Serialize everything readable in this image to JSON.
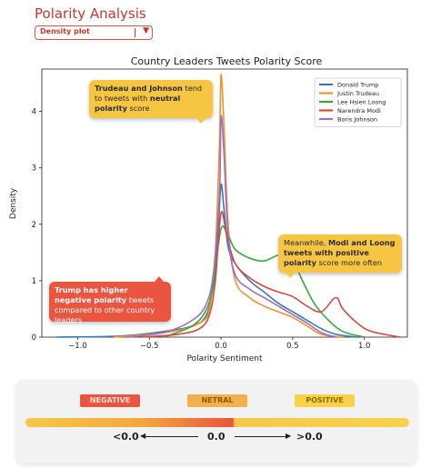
{
  "app": {
    "title": "Polarity Analysis",
    "plot_select": {
      "value": "Density plot",
      "caret": "▼"
    }
  },
  "chart_data": {
    "type": "line",
    "title": "Country Leaders Tweets Polarity Score",
    "xlabel": "Polarity Sentiment",
    "ylabel": "Density",
    "xlim": [
      -1.25,
      1.3
    ],
    "ylim": [
      0,
      4.75
    ],
    "xticks": [
      -1.0,
      -0.5,
      0.0,
      0.5,
      1.0
    ],
    "xtick_labels": [
      "−1.0",
      "−0.5",
      "0.0",
      "0.5",
      "1.0"
    ],
    "yticks": [
      0,
      1,
      2,
      3,
      4
    ],
    "ytick_labels": [
      "0",
      "1",
      "2",
      "3",
      "4"
    ],
    "legend_position": "top-right",
    "series": [
      {
        "name": "Donald Trump",
        "color": "#3b78ae",
        "points": [
          [
            -1.15,
            0
          ],
          [
            -0.7,
            0.02
          ],
          [
            -0.4,
            0.1
          ],
          [
            -0.2,
            0.2
          ],
          [
            -0.1,
            0.4
          ],
          [
            -0.05,
            1.0
          ],
          [
            -0.02,
            1.9
          ],
          [
            0,
            2.7
          ],
          [
            0.02,
            2.3
          ],
          [
            0.05,
            1.6
          ],
          [
            0.1,
            1.3
          ],
          [
            0.2,
            1.0
          ],
          [
            0.3,
            0.8
          ],
          [
            0.4,
            0.6
          ],
          [
            0.5,
            0.45
          ],
          [
            0.6,
            0.3
          ],
          [
            0.7,
            0.15
          ],
          [
            0.8,
            0.05
          ],
          [
            0.95,
            0
          ]
        ]
      },
      {
        "name": "Justin Trudeau",
        "color": "#f0922a",
        "points": [
          [
            -0.75,
            0
          ],
          [
            -0.5,
            0.05
          ],
          [
            -0.3,
            0.12
          ],
          [
            -0.15,
            0.25
          ],
          [
            -0.08,
            0.5
          ],
          [
            -0.04,
            1.5
          ],
          [
            -0.01,
            3.5
          ],
          [
            0,
            4.65
          ],
          [
            0.02,
            3.8
          ],
          [
            0.05,
            2.0
          ],
          [
            0.1,
            1.0
          ],
          [
            0.2,
            0.7
          ],
          [
            0.3,
            0.55
          ],
          [
            0.4,
            0.45
          ],
          [
            0.5,
            0.35
          ],
          [
            0.6,
            0.2
          ],
          [
            0.7,
            0.05
          ],
          [
            0.85,
            0
          ]
        ]
      },
      {
        "name": "Lee Hsien Loong",
        "color": "#3aa83a",
        "points": [
          [
            -0.4,
            0
          ],
          [
            -0.2,
            0.2
          ],
          [
            -0.1,
            0.5
          ],
          [
            -0.05,
            1.0
          ],
          [
            0,
            1.92
          ],
          [
            0.05,
            1.8
          ],
          [
            0.1,
            1.55
          ],
          [
            0.2,
            1.4
          ],
          [
            0.3,
            1.35
          ],
          [
            0.4,
            1.45
          ],
          [
            0.5,
            1.4
          ],
          [
            0.55,
            1.1
          ],
          [
            0.65,
            0.6
          ],
          [
            0.75,
            0.3
          ],
          [
            0.85,
            0.1
          ],
          [
            1.0,
            0
          ]
        ]
      },
      {
        "name": "Narendra Modi",
        "color": "#d24a3f",
        "points": [
          [
            -0.55,
            0
          ],
          [
            -0.3,
            0.05
          ],
          [
            -0.15,
            0.15
          ],
          [
            -0.08,
            0.4
          ],
          [
            -0.04,
            1.0
          ],
          [
            0,
            2.2
          ],
          [
            0.04,
            1.8
          ],
          [
            0.1,
            1.3
          ],
          [
            0.2,
            1.05
          ],
          [
            0.3,
            0.9
          ],
          [
            0.4,
            0.8
          ],
          [
            0.5,
            0.72
          ],
          [
            0.6,
            0.55
          ],
          [
            0.7,
            0.45
          ],
          [
            0.8,
            0.7
          ],
          [
            0.85,
            0.5
          ],
          [
            0.95,
            0.25
          ],
          [
            1.05,
            0.1
          ],
          [
            1.25,
            0
          ]
        ]
      },
      {
        "name": "Boris Johnson",
        "color": "#9b6fc4",
        "points": [
          [
            -0.65,
            0
          ],
          [
            -0.4,
            0.08
          ],
          [
            -0.2,
            0.3
          ],
          [
            -0.1,
            0.6
          ],
          [
            -0.05,
            1.2
          ],
          [
            -0.01,
            2.6
          ],
          [
            0,
            3.9
          ],
          [
            0.02,
            3.3
          ],
          [
            0.05,
            1.8
          ],
          [
            0.1,
            1.1
          ],
          [
            0.2,
            0.85
          ],
          [
            0.3,
            0.7
          ],
          [
            0.4,
            0.55
          ],
          [
            0.5,
            0.4
          ],
          [
            0.6,
            0.25
          ],
          [
            0.7,
            0.08
          ],
          [
            0.8,
            0
          ]
        ]
      }
    ],
    "annotations": [
      {
        "id": "trudeau",
        "style": "yellow",
        "tail": "bottom-right",
        "segments": [
          {
            "text": "Trudeau and Johnson",
            "bold": true
          },
          {
            "text": " tend to tweets with "
          },
          {
            "text": "neutral polarity",
            "bold": true
          },
          {
            "text": " score"
          }
        ]
      },
      {
        "id": "modi",
        "style": "yellow",
        "tail": "bottom-left",
        "segments": [
          {
            "text": "Meanwhile, "
          },
          {
            "text": "Modi and Loong tweets with positive polarity",
            "bold": true
          },
          {
            "text": " score more often"
          }
        ]
      },
      {
        "id": "trump",
        "style": "red",
        "tail": "top-right",
        "segments": [
          {
            "text": "Trump has higher negative polarity",
            "bold": true
          },
          {
            "text": " tweets compared to other country leaders"
          }
        ]
      }
    ]
  },
  "scale_legend": {
    "negative_label": "NEGATIVE",
    "neutral_label": "NETRAL",
    "positive_label": "POSITIVE",
    "left_text": "<0.0",
    "center_text": "0.0",
    "right_text": ">0.0",
    "colors": {
      "negative": "#ea5540",
      "neutral": "#f4b04a",
      "positive": "#f9d24a"
    }
  }
}
